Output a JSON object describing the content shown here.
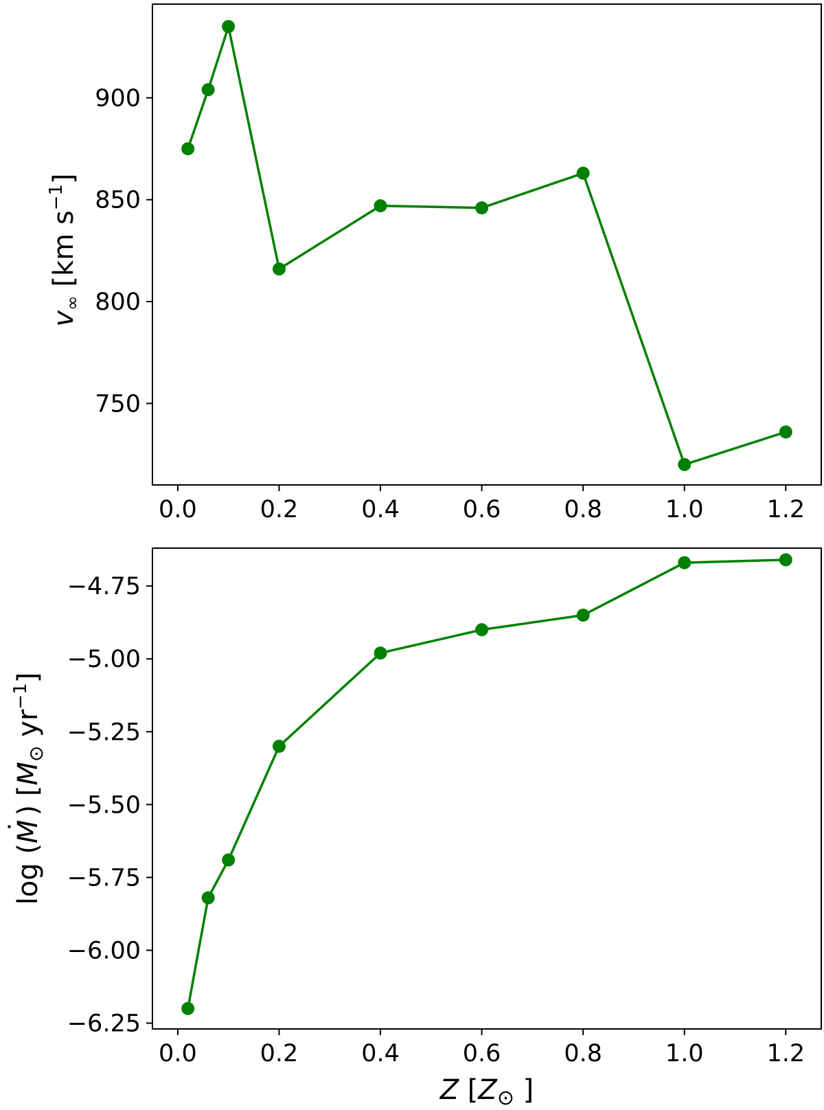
{
  "chart_data": [
    {
      "type": "line",
      "title": "",
      "xlabel": "",
      "ylabel": "v∞ [km s−1]",
      "ylabel_parts": {
        "symbol": "v",
        "subscript": "∞",
        "unit_open": " [km s",
        "exponent": "−1",
        "unit_close": "]"
      },
      "xlim": [
        -0.05,
        1.27
      ],
      "ylim": [
        710,
        946
      ],
      "xticks": [
        0.0,
        0.2,
        0.4,
        0.6,
        0.8,
        1.0,
        1.2
      ],
      "xtick_labels": [
        "0.0",
        "0.2",
        "0.4",
        "0.6",
        "0.8",
        "1.0",
        "1.2"
      ],
      "yticks": [
        750,
        800,
        850,
        900
      ],
      "ytick_labels": [
        "750",
        "800",
        "850",
        "900"
      ],
      "grid": false,
      "series": [
        {
          "color": "#008000",
          "marker": "circle",
          "x": [
            0.02,
            0.06,
            0.1,
            0.2,
            0.4,
            0.6,
            0.8,
            1.0,
            1.2
          ],
          "values": [
            875,
            904,
            935,
            816,
            847,
            846,
            863,
            720,
            736
          ]
        }
      ]
    },
    {
      "type": "line",
      "title": "",
      "xlabel": "Z [Z⊙]",
      "xlabel_parts": {
        "symbol": "Z",
        "open": " [",
        "unit_symbol": "Z",
        "unit_subscript": "⊙",
        "close": " ]"
      },
      "ylabel": "log (Ṁ) [M⊙ yr−1]",
      "ylabel_parts": {
        "prefix": "log (",
        "symbol": "M",
        "dot": "˙",
        "mid": ") [",
        "unit_symbol": "M",
        "unit_subscript": "⊙",
        "unit_text": " yr",
        "exponent": "−1",
        "close": "]"
      },
      "xlim": [
        -0.05,
        1.27
      ],
      "ylim": [
        -6.27,
        -4.62
      ],
      "xticks": [
        0.0,
        0.2,
        0.4,
        0.6,
        0.8,
        1.0,
        1.2
      ],
      "xtick_labels": [
        "0.0",
        "0.2",
        "0.4",
        "0.6",
        "0.8",
        "1.0",
        "1.2"
      ],
      "yticks": [
        -6.25,
        -6.0,
        -5.75,
        -5.5,
        -5.25,
        -5.0,
        -4.75
      ],
      "ytick_labels": [
        "−6.25",
        "−6.00",
        "−5.75",
        "−5.50",
        "−5.25",
        "−5.00",
        "−4.75"
      ],
      "grid": false,
      "series": [
        {
          "color": "#008000",
          "marker": "circle",
          "x": [
            0.02,
            0.06,
            0.1,
            0.2,
            0.4,
            0.6,
            0.8,
            1.0,
            1.2
          ],
          "values": [
            -6.2,
            -5.82,
            -5.69,
            -5.3,
            -4.98,
            -4.9,
            -4.85,
            -4.67,
            -4.66
          ]
        }
      ]
    }
  ]
}
